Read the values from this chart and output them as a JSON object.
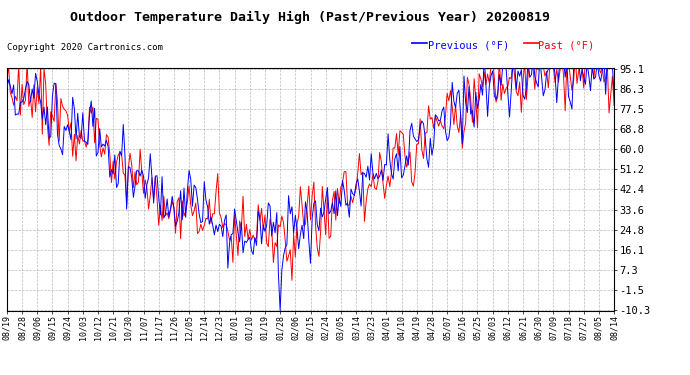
{
  "title": "Outdoor Temperature Daily High (Past/Previous Year) 20200819",
  "copyright": "Copyright 2020 Cartronics.com",
  "legend_previous": "Previous (°F)",
  "legend_past": "Past (°F)",
  "color_previous": "blue",
  "color_past": "red",
  "yticks": [
    95.1,
    86.3,
    77.5,
    68.8,
    60.0,
    51.2,
    42.4,
    33.6,
    24.8,
    16.1,
    7.3,
    -1.5,
    -10.3
  ],
  "ymin": -10.3,
  "ymax": 95.1,
  "background_color": "white",
  "grid_color": "#aaaaaa",
  "x_dates": [
    "08/19",
    "08/28",
    "09/06",
    "09/15",
    "09/24",
    "10/03",
    "10/12",
    "10/21",
    "10/30",
    "11/07",
    "11/17",
    "11/26",
    "12/05",
    "12/14",
    "12/23",
    "01/01",
    "01/10",
    "01/19",
    "01/28",
    "02/06",
    "02/15",
    "02/24",
    "03/05",
    "03/14",
    "03/23",
    "04/01",
    "04/10",
    "04/19",
    "04/28",
    "05/07",
    "05/16",
    "05/25",
    "06/03",
    "06/12",
    "06/21",
    "06/30",
    "07/09",
    "07/18",
    "07/27",
    "08/05",
    "08/14"
  ]
}
